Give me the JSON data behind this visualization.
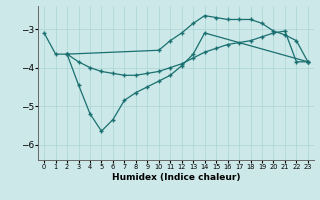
{
  "xlabel": "Humidex (Indice chaleur)",
  "bg_color": "#cce8e8",
  "grid_color": "#aad4d4",
  "line_color": "#1a7070",
  "xlim": [
    -0.5,
    23.5
  ],
  "ylim": [
    -6.4,
    -2.4
  ],
  "yticks": [
    -6,
    -5,
    -4,
    -3
  ],
  "xticks": [
    0,
    1,
    2,
    3,
    4,
    5,
    6,
    7,
    8,
    9,
    10,
    11,
    12,
    13,
    14,
    15,
    16,
    17,
    18,
    19,
    20,
    21,
    22,
    23
  ],
  "lines": [
    {
      "x": [
        0,
        1,
        2,
        10,
        11,
        12,
        13,
        14,
        15,
        16,
        17,
        18,
        19,
        20,
        21,
        22,
        23
      ],
      "y": [
        -3.1,
        -3.65,
        -3.65,
        -3.55,
        -3.3,
        -3.1,
        -2.85,
        -2.65,
        -2.7,
        -2.75,
        -2.75,
        -2.75,
        -2.85,
        -3.05,
        -3.15,
        -3.3,
        -3.85
      ]
    },
    {
      "x": [
        2,
        3,
        4,
        5,
        6,
        7,
        8,
        9,
        10,
        11,
        12,
        13,
        14,
        15,
        16,
        17,
        18,
        19,
        20,
        21,
        22,
        23
      ],
      "y": [
        -3.65,
        -3.85,
        -4.0,
        -4.1,
        -4.15,
        -4.2,
        -4.2,
        -4.15,
        -4.1,
        -4.0,
        -3.9,
        -3.75,
        -3.6,
        -3.5,
        -3.4,
        -3.35,
        -3.3,
        -3.2,
        -3.1,
        -3.05,
        -3.85,
        -3.85
      ]
    },
    {
      "x": [
        2,
        3,
        4,
        5,
        6,
        7,
        8,
        9,
        10,
        11,
        12,
        13,
        14,
        23
      ],
      "y": [
        -3.65,
        -4.45,
        -5.2,
        -5.65,
        -5.35,
        -4.85,
        -4.65,
        -4.5,
        -4.35,
        -4.2,
        -3.95,
        -3.65,
        -3.1,
        -3.85
      ]
    }
  ]
}
